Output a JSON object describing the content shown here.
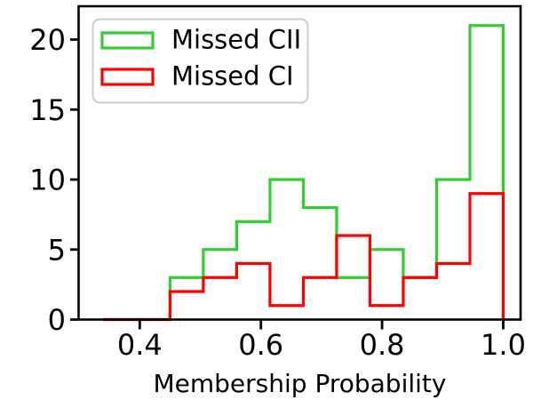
{
  "chart_data": {
    "type": "histogram-step",
    "title": "",
    "xlabel": "Membership Probability",
    "ylabel": "",
    "xlim": [
      0.299,
      1.028
    ],
    "ylim": [
      0,
      22.3
    ],
    "grid": false,
    "x_tick_values": [
      0.4,
      0.6,
      0.8,
      1.0
    ],
    "x_tick_labels": [
      "0.4",
      "0.6",
      "0.8",
      "1.0"
    ],
    "y_tick_values": [
      0,
      5,
      10,
      15,
      20
    ],
    "y_tick_labels": [
      "0",
      "5",
      "10",
      "15",
      "20"
    ],
    "bin_edges": [
      0.34,
      0.395,
      0.45,
      0.505,
      0.56,
      0.615,
      0.67,
      0.725,
      0.78,
      0.835,
      0.89,
      0.945,
      1.0
    ],
    "series": [
      {
        "name": "Missed CII",
        "color": "#32CD32",
        "counts": [
          0,
          0,
          3,
          5,
          7,
          10,
          8,
          3,
          5,
          3,
          10,
          21
        ]
      },
      {
        "name": "Missed CI",
        "color": "#FF0000",
        "counts": [
          0,
          0,
          2,
          3,
          4,
          1,
          3,
          6,
          1,
          3,
          4,
          9
        ]
      }
    ],
    "legend": {
      "position": "upper left",
      "border_color": "#CBCBCB",
      "background": "#FFFFFF",
      "labels": [
        "Missed CII",
        "Missed CI"
      ]
    },
    "axis_color": "#000000",
    "background_color": "#FFFFFF"
  }
}
